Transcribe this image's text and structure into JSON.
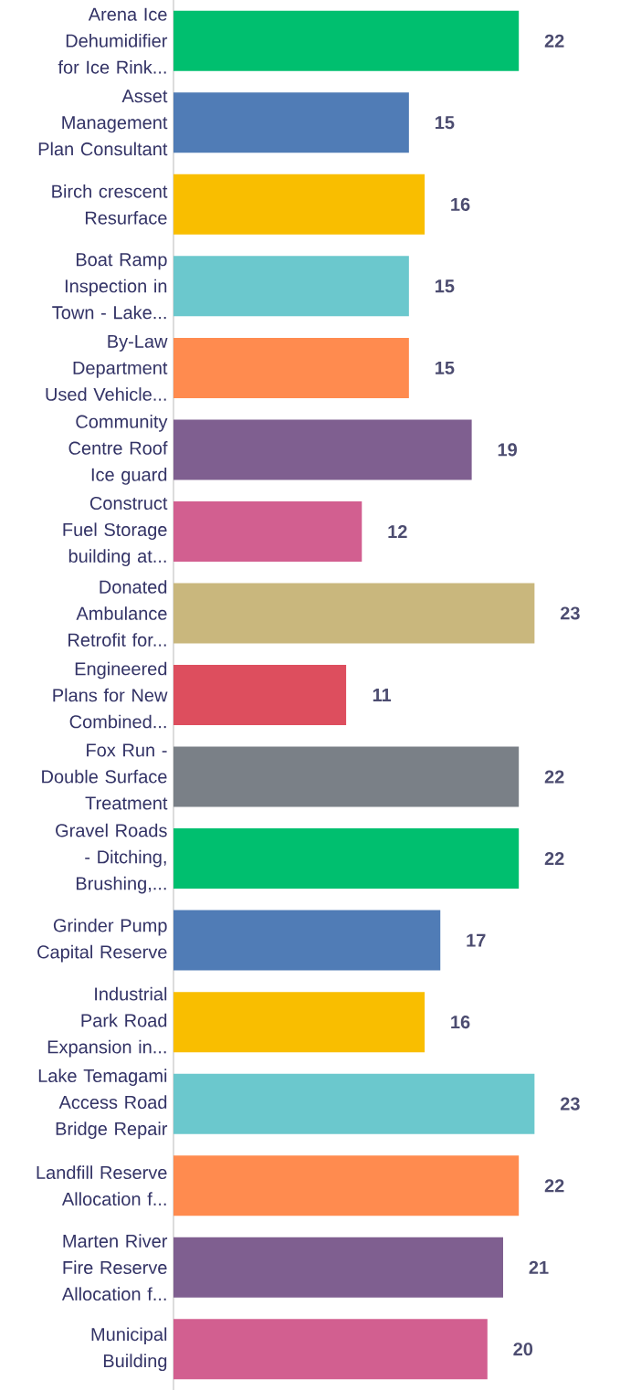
{
  "chart_data": {
    "type": "bar",
    "orientation": "horizontal",
    "categories": [
      "Arena Ice Dehumidifier for Ice Rink...",
      "Asset Management Plan Consultant",
      "Birch crescent Resurface",
      "Boat Ramp Inspection in Town - Lake...",
      "By-Law Department Used Vehicle...",
      "Community Centre Roof Ice guard",
      "Construct Fuel Storage building at...",
      "Donated Ambulance Retrofit for...",
      "Engineered Plans for New Combined...",
      "Fox Run - Double Surface Treatment",
      "Gravel Roads - Ditching, Brushing,...",
      "Grinder Pump Capital Reserve",
      "Industrial Park Road Expansion in...",
      "Lake Temagami Access Road Bridge Repair",
      "Landfill Reserve Allocation f...",
      "Marten River Fire Reserve Allocation f...",
      "Municipal Building"
    ],
    "values": [
      22,
      15,
      16,
      15,
      15,
      19,
      12,
      23,
      11,
      22,
      22,
      17,
      16,
      23,
      22,
      21,
      20
    ],
    "colors": [
      "#00bf6f",
      "#507cb6",
      "#f9be00",
      "#6bc8cd",
      "#ff8b4f",
      "#7f5f90",
      "#d25f90",
      "#c9b77d",
      "#dd4e5e",
      "#7a8087",
      "#00bf6f",
      "#507cb6",
      "#f9be00",
      "#6bc8cd",
      "#ff8b4f",
      "#7f5f90",
      "#d25f90"
    ],
    "tick_labels": "y",
    "data_labels": true
  }
}
